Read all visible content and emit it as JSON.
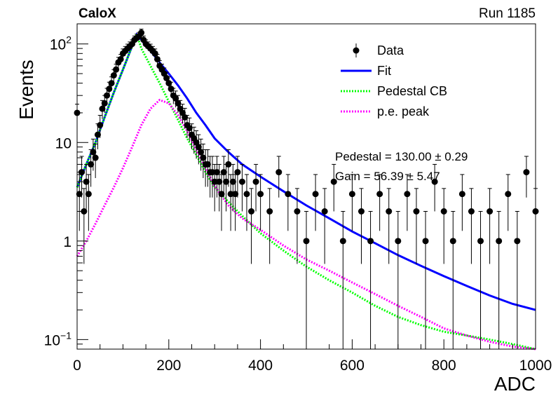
{
  "chart_data": {
    "type": "scatter",
    "title": "CaloX",
    "run_label": "Run 1185",
    "xlabel": "ADC",
    "ylabel": "Events",
    "xlim": [
      0,
      1000
    ],
    "ylim": [
      0.08,
      160
    ],
    "y_scale": "log",
    "x_ticks": [
      0,
      200,
      400,
      600,
      800,
      1000
    ],
    "y_ticks": [
      {
        "value": 0.1,
        "label": "10",
        "exp": "−1"
      },
      {
        "value": 1,
        "label": "1",
        "exp": ""
      },
      {
        "value": 10,
        "label": "10",
        "exp": ""
      },
      {
        "value": 100,
        "label": "10",
        "exp": "2"
      }
    ],
    "legend": {
      "placement": "top-right",
      "entries": [
        {
          "label": "Data",
          "type": "marker",
          "color": "#000000"
        },
        {
          "label": "Fit",
          "type": "line",
          "color": "#0000ff"
        },
        {
          "label": "Pedestal CB",
          "type": "dots",
          "color": "#00ff00"
        },
        {
          "label": "p.e. peak",
          "type": "dots",
          "color": "#ff00ff"
        }
      ]
    },
    "fit_results": {
      "pedestal": "Pedestal = 130.00 ± 0.29",
      "gain": "Gain = 56.39 ± 5.47"
    },
    "colors": {
      "data": "#000000",
      "fit": "#0000ff",
      "pedestal": "#00ff00",
      "pe_peak": "#ff00ff"
    },
    "series": [
      {
        "name": "Data",
        "kind": "points",
        "x": [
          0,
          5,
          10,
          15,
          20,
          25,
          30,
          35,
          40,
          45,
          50,
          55,
          60,
          65,
          70,
          75,
          80,
          85,
          90,
          95,
          100,
          105,
          110,
          115,
          120,
          125,
          130,
          135,
          140,
          145,
          150,
          155,
          160,
          165,
          170,
          175,
          180,
          185,
          190,
          195,
          200,
          205,
          210,
          215,
          220,
          225,
          230,
          235,
          240,
          245,
          250,
          255,
          260,
          265,
          270,
          275,
          280,
          285,
          290,
          295,
          300,
          305,
          310,
          315,
          320,
          325,
          330,
          335,
          340,
          345,
          350,
          360,
          370,
          380,
          390,
          400,
          420,
          440,
          460,
          480,
          500,
          520,
          540,
          560,
          580,
          600,
          620,
          640,
          660,
          680,
          700,
          720,
          740,
          760,
          780,
          800,
          820,
          840,
          860,
          880,
          900,
          920,
          940,
          960,
          980,
          1000
        ],
        "y": [
          20,
          3,
          5,
          2,
          4,
          3,
          6,
          8,
          7,
          12,
          15,
          22,
          25,
          30,
          35,
          40,
          48,
          55,
          65,
          70,
          80,
          85,
          90,
          95,
          100,
          110,
          115,
          120,
          130,
          110,
          100,
          95,
          90,
          85,
          80,
          70,
          60,
          55,
          50,
          45,
          40,
          35,
          30,
          28,
          25,
          22,
          20,
          18,
          15,
          14,
          12,
          11,
          10,
          9,
          8,
          7,
          6,
          6,
          5,
          5,
          4,
          5,
          4,
          3,
          5,
          4,
          6,
          3,
          4,
          3,
          5,
          4,
          3,
          2,
          4,
          3,
          2,
          5,
          3,
          2,
          1,
          3,
          2,
          4,
          1,
          3,
          2,
          1,
          3,
          2,
          1,
          3,
          2,
          1,
          4,
          2,
          1,
          3,
          2,
          1,
          2,
          1,
          3,
          1,
          5,
          2
        ]
      },
      {
        "name": "Fit",
        "kind": "line",
        "x": [
          0,
          20,
          40,
          60,
          80,
          100,
          120,
          130,
          140,
          160,
          180,
          200,
          220,
          240,
          260,
          280,
          300,
          330,
          360,
          400,
          450,
          500,
          550,
          600,
          650,
          700,
          750,
          800,
          850,
          900,
          950,
          1000
        ],
        "y": [
          3.5,
          6,
          10,
          18,
          32,
          55,
          95,
          125,
          110,
          85,
          65,
          50,
          38,
          28,
          20,
          15,
          11,
          8,
          6,
          4.5,
          3.2,
          2.3,
          1.7,
          1.25,
          0.95,
          0.72,
          0.56,
          0.44,
          0.35,
          0.28,
          0.23,
          0.2
        ]
      },
      {
        "name": "Pedestal CB",
        "kind": "dots",
        "x": [
          0,
          20,
          40,
          60,
          80,
          100,
          120,
          130,
          140,
          160,
          180,
          200,
          220,
          240,
          260,
          280,
          300,
          330,
          360,
          400,
          450,
          500,
          550,
          600,
          650,
          700,
          750,
          800,
          850,
          900,
          950,
          1000
        ],
        "y": [
          3.5,
          6,
          10,
          18,
          32,
          55,
          95,
          125,
          90,
          60,
          40,
          26,
          17,
          11,
          7.5,
          5,
          3.5,
          2.5,
          1.8,
          1.2,
          0.8,
          0.55,
          0.4,
          0.3,
          0.22,
          0.17,
          0.14,
          0.12,
          0.11,
          0.1,
          0.09,
          0.08
        ]
      },
      {
        "name": "p.e. peak",
        "kind": "dots",
        "x": [
          0,
          20,
          40,
          60,
          80,
          100,
          120,
          140,
          160,
          180,
          200,
          220,
          240,
          260,
          280,
          300,
          330,
          360,
          400,
          450,
          500,
          550,
          600,
          650,
          700,
          750,
          800,
          850,
          900,
          950,
          1000
        ],
        "y": [
          0.7,
          1.0,
          1.5,
          2.3,
          3.5,
          5.5,
          9,
          15,
          22,
          27,
          25,
          19,
          13,
          8.5,
          5.5,
          3.6,
          2.3,
          1.7,
          1.3,
          0.9,
          0.65,
          0.5,
          0.38,
          0.29,
          0.22,
          0.17,
          0.13,
          0.11,
          0.095,
          0.085,
          0.08
        ]
      }
    ]
  }
}
